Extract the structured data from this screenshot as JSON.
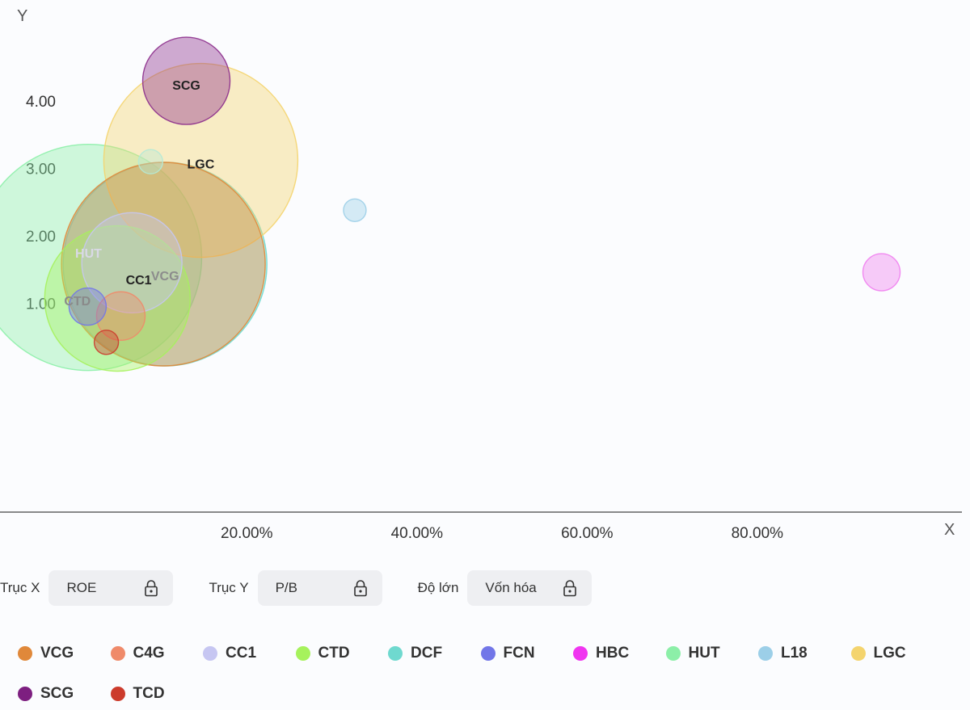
{
  "chart_data": {
    "type": "bubble",
    "axes": {
      "y_letter": "Y",
      "x_letter": "X"
    },
    "x_ticks": [
      {
        "value": 20,
        "label": "20.00%"
      },
      {
        "value": 40,
        "label": "40.00%"
      },
      {
        "value": 60,
        "label": "60.00%"
      },
      {
        "value": 80,
        "label": "80.00%"
      }
    ],
    "y_ticks": [
      {
        "value": 1,
        "label": "1.00"
      },
      {
        "value": 2,
        "label": "2.00"
      },
      {
        "value": 3,
        "label": "3.00"
      },
      {
        "value": 4,
        "label": "4.00"
      }
    ],
    "xlim": [
      -9,
      105
    ],
    "ylim": [
      -2.1,
      5.5
    ],
    "grid": false,
    "legend_position": "bottom",
    "series": [
      {
        "name": "HUT",
        "x": 1.4,
        "y": 1.68,
        "size": 140,
        "color": "#8cefa8",
        "label_color": "#d9d9e6",
        "label_dx": 0,
        "label_dy": 0.07
      },
      {
        "name": "DCF",
        "x": 10.4,
        "y": 1.58,
        "size": 126,
        "color": "#6fd9cf",
        "label_color": "",
        "label_dx": 0,
        "label_dy": 0
      },
      {
        "name": "LGC",
        "x": 14.6,
        "y": 3.12,
        "size": 120,
        "color": "#f4d46e",
        "label_color": "#222",
        "label_dx": 0,
        "label_dy": -0.05
      },
      {
        "name": "VCG",
        "x": 10.2,
        "y": 1.58,
        "size": 126,
        "color": "#e0883a",
        "label_color": "#8c8c8c",
        "label_dx": 0.2,
        "label_dy": -0.17
      },
      {
        "name": "CTD",
        "x": 4.8,
        "y": 1.07,
        "size": 90,
        "color": "#a6f25c",
        "label_color": "#8a8a8a",
        "label_dx": -4.7,
        "label_dy": -0.03
      },
      {
        "name": "CC1",
        "x": 6.5,
        "y": 1.6,
        "size": 62,
        "color": "#c6c6f2",
        "label_color": "#222",
        "label_dx": 0.8,
        "label_dy": -0.25
      },
      {
        "name": "SCG",
        "x": 12.9,
        "y": 4.3,
        "size": 54,
        "color": "#8c2e8c",
        "label_color": "#222",
        "label_dx": 0,
        "label_dy": -0.06
      },
      {
        "name": "C4G",
        "x": 5.2,
        "y": 0.81,
        "size": 30,
        "color": "#ef8a6a",
        "label_color": "",
        "label_dx": 0,
        "label_dy": 0
      },
      {
        "name": "FCN",
        "x": 1.3,
        "y": 0.95,
        "size": 23,
        "color": "#7276e8",
        "label_color": "",
        "label_dx": 0,
        "label_dy": 0
      },
      {
        "name": "TCD",
        "x": 3.5,
        "y": 0.42,
        "size": 15,
        "color": "#cc3b2c",
        "label_color": "",
        "label_dx": 0,
        "label_dy": 0
      },
      {
        "name": "L18",
        "x": 32.7,
        "y": 2.38,
        "size": 14,
        "color": "#9ccfe8",
        "label_color": "",
        "label_dx": 0,
        "label_dy": 0
      },
      {
        "name": "HBC",
        "x": 94.6,
        "y": 1.46,
        "size": 23,
        "color": "#f07ff0",
        "label_color": "",
        "label_dx": 0,
        "label_dy": 0
      },
      {
        "name": "small-green",
        "x": 8.7,
        "y": 3.1,
        "size": 15,
        "color": "#b4ead6",
        "label_color": "",
        "label_dx": 0,
        "label_dy": 0
      }
    ]
  },
  "controls": {
    "x_axis": {
      "label": "Trục X",
      "value": "ROE"
    },
    "y_axis": {
      "label": "Trục Y",
      "value": "P/B"
    },
    "size": {
      "label": "Độ lớn",
      "value": "Vốn hóa"
    }
  },
  "legend": [
    {
      "name": "VCG",
      "color": "#e0883a"
    },
    {
      "name": "C4G",
      "color": "#ef8a6a"
    },
    {
      "name": "CC1",
      "color": "#c6c6f2"
    },
    {
      "name": "CTD",
      "color": "#a6f25c"
    },
    {
      "name": "DCF",
      "color": "#6fd9cf"
    },
    {
      "name": "FCN",
      "color": "#7276e8"
    },
    {
      "name": "HBC",
      "color": "#f035f0"
    },
    {
      "name": "HUT",
      "color": "#8cefa8"
    },
    {
      "name": "L18",
      "color": "#9ccfe8"
    },
    {
      "name": "LGC",
      "color": "#f4d46e"
    },
    {
      "name": "SCG",
      "color": "#7d1f80"
    },
    {
      "name": "TCD",
      "color": "#cc3b2c"
    }
  ]
}
